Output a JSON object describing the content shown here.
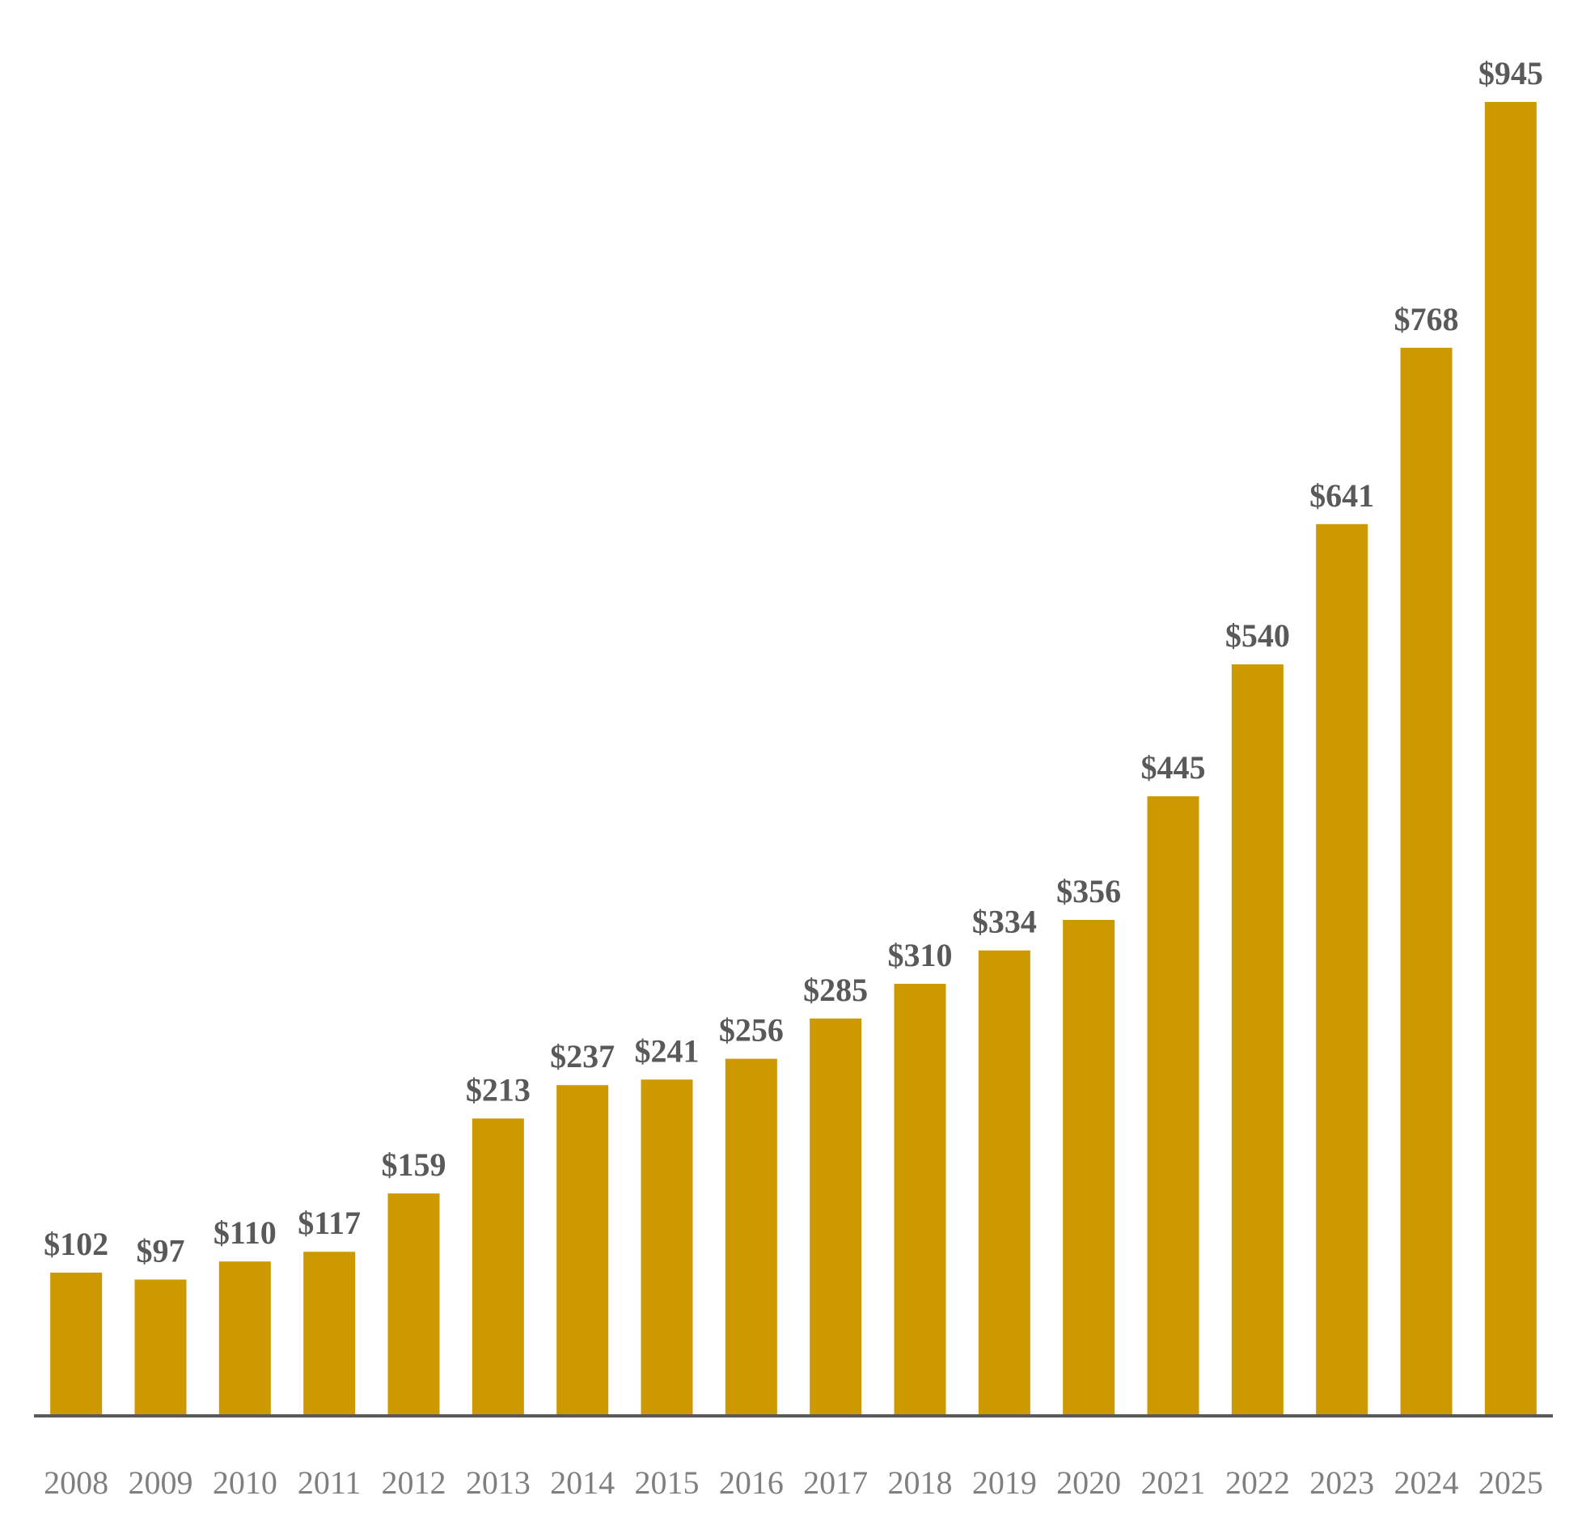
{
  "chart_data": {
    "type": "bar",
    "title": "",
    "xlabel": "",
    "ylabel": "",
    "categories": [
      "2008",
      "2009",
      "2010",
      "2011",
      "2012",
      "2013",
      "2014",
      "2015",
      "2016",
      "2017",
      "2018",
      "2019",
      "2020",
      "2021",
      "2022",
      "2023",
      "2024",
      "2025"
    ],
    "values": [
      102,
      97,
      110,
      117,
      159,
      213,
      237,
      241,
      256,
      285,
      310,
      334,
      356,
      445,
      540,
      641,
      768,
      945
    ],
    "value_labels": [
      "$102",
      "$97",
      "$110",
      "$117",
      "$159",
      "$213",
      "$237",
      "$241",
      "$256",
      "$285",
      "$310",
      "$334",
      "$356",
      "$445",
      "$540",
      "$641",
      "$768",
      "$945"
    ],
    "ylim": [
      0,
      945
    ],
    "grid": false,
    "legend": "none",
    "colors": {
      "bar": "#CC9900",
      "axis": "#595959",
      "value_label": "#595959",
      "tick_label": "#7F7F7F"
    }
  }
}
